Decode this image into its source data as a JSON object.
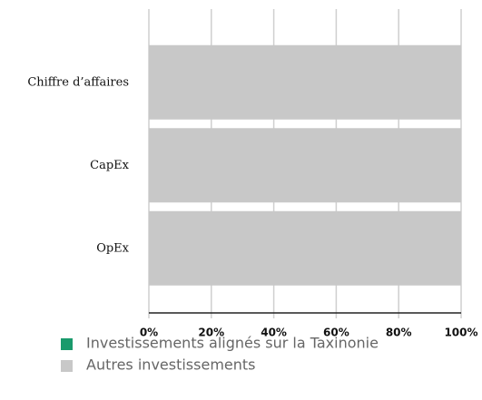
{
  "chart_data": {
    "type": "stacked-bar-horizontal",
    "categories": [
      "Chiffre d’affaires",
      "CapEx",
      "OpEx"
    ],
    "series": [
      {
        "name": "Investissements alignés sur la Taxinonie",
        "color": "#1a9a6c",
        "values": [
          0,
          0,
          0
        ]
      },
      {
        "name": "Autres investissements",
        "color": "#c8c8c8",
        "values": [
          100,
          100,
          100
        ]
      }
    ],
    "xlim": [
      0,
      100
    ],
    "xticks": [
      {
        "value": 0,
        "label": "0%"
      },
      {
        "value": 20,
        "label": "20%"
      },
      {
        "value": 40,
        "label": "40%"
      },
      {
        "value": 60,
        "label": "60%"
      },
      {
        "value": 80,
        "label": "80%"
      },
      {
        "value": 100,
        "label": "100%"
      }
    ],
    "grid": true
  }
}
